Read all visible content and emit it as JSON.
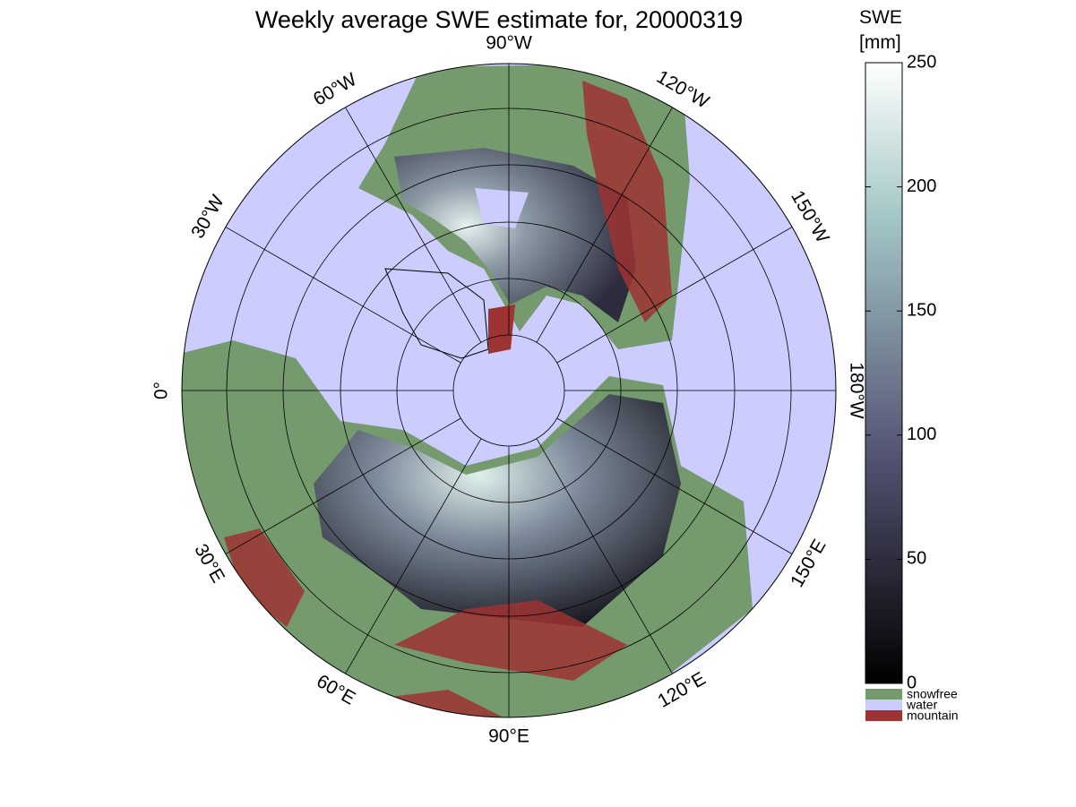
{
  "title": "Weekly average SWE estimate for, 20000319",
  "map": {
    "meridians": [
      {
        "value": -90,
        "label": "90°W"
      },
      {
        "value": -60,
        "label": "60°W"
      },
      {
        "value": -30,
        "label": "30°W"
      },
      {
        "value": 0,
        "label": "0°"
      },
      {
        "value": 30,
        "label": "30°E"
      },
      {
        "value": 60,
        "label": "60°E"
      },
      {
        "value": 90,
        "label": "90°E"
      },
      {
        "value": 120,
        "label": "120°E"
      },
      {
        "value": 150,
        "label": "150°E"
      },
      {
        "value": 180,
        "label": "180°W"
      },
      {
        "value": -150,
        "label": "150°W"
      },
      {
        "value": -120,
        "label": "120°W"
      }
    ]
  },
  "colorbar": {
    "label": [
      "SWE",
      "[mm]"
    ],
    "range": [
      0,
      250
    ],
    "ticks": [
      0,
      50,
      100,
      150,
      200,
      250
    ]
  },
  "legend": [
    {
      "name": "snowfree",
      "color": "#749a6e"
    },
    {
      "name": "water",
      "color": "#ccccff"
    },
    {
      "name": "mountain",
      "color": "#9e3333"
    }
  ]
}
